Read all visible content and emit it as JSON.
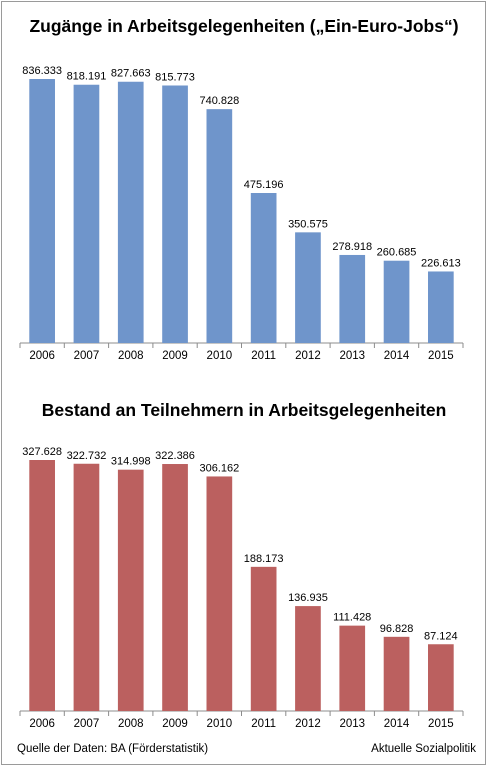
{
  "footer": {
    "source": "Quelle der Daten: BA (Förderstatistik)",
    "publisher": "Aktuelle Sozialpolitik"
  },
  "chart_data": [
    {
      "type": "bar",
      "title": "Zugänge in Arbeitsgelegenheiten („Ein-Euro-Jobs“)",
      "xlabel": "",
      "ylabel": "",
      "categories": [
        "2006",
        "2007",
        "2008",
        "2009",
        "2010",
        "2011",
        "2012",
        "2013",
        "2014",
        "2015"
      ],
      "values": [
        836333,
        818191,
        827663,
        815773,
        740828,
        475196,
        350575,
        278918,
        260685,
        226613
      ],
      "value_labels": [
        "836.333",
        "818.191",
        "827.663",
        "815.773",
        "740.828",
        "475.196",
        "350.575",
        "278.918",
        "260.685",
        "226.613"
      ],
      "color": "#6f95cb",
      "grid": false,
      "legend": "none"
    },
    {
      "type": "bar",
      "title": "Bestand an Teilnehmern in Arbeitsgelegenheiten",
      "xlabel": "",
      "ylabel": "",
      "categories": [
        "2006",
        "2007",
        "2008",
        "2009",
        "2010",
        "2011",
        "2012",
        "2013",
        "2014",
        "2015"
      ],
      "values": [
        327628,
        322732,
        314998,
        322386,
        306162,
        188173,
        136935,
        111428,
        96828,
        87124
      ],
      "value_labels": [
        "327.628",
        "322.732",
        "314.998",
        "322.386",
        "306.162",
        "188.173",
        "136.935",
        "111.428",
        "96.828",
        "87.124"
      ],
      "color": "#bb605f",
      "grid": false,
      "legend": "none"
    }
  ]
}
